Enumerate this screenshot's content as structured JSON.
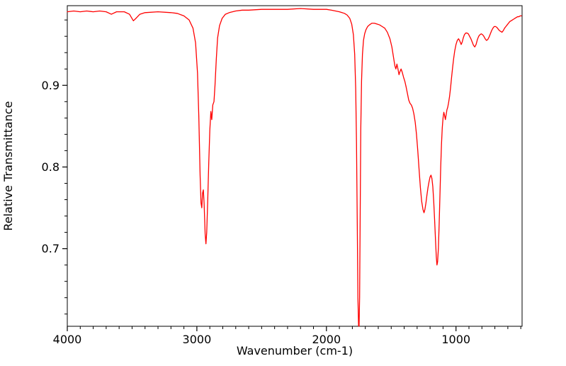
{
  "figure": {
    "background": "#ffffff",
    "axis_color": "#000000"
  },
  "chart_data": {
    "type": "line",
    "title": "",
    "xlabel": "Wavenumber (cm-1)",
    "ylabel": "Relative Transmittance",
    "x_axis_reversed": true,
    "xlim": [
      4000,
      490
    ],
    "ylim": [
      0.605,
      0.9975
    ],
    "x_major_ticks": [
      4000,
      3000,
      2000,
      1000
    ],
    "x_minor_tick_step": 100,
    "y_major_ticks": [
      0.7,
      0.8,
      0.9
    ],
    "y_minor_tick_step": 0.02,
    "grid": false,
    "legend": false,
    "line_color": "#ff0000",
    "line_width": 1.3,
    "series": [
      {
        "points": [
          [
            4000,
            0.99
          ],
          [
            3950,
            0.991
          ],
          [
            3900,
            0.99
          ],
          [
            3850,
            0.991
          ],
          [
            3800,
            0.99
          ],
          [
            3750,
            0.991
          ],
          [
            3700,
            0.99
          ],
          [
            3660,
            0.987
          ],
          [
            3620,
            0.99
          ],
          [
            3560,
            0.99
          ],
          [
            3520,
            0.987
          ],
          [
            3490,
            0.979
          ],
          [
            3470,
            0.982
          ],
          [
            3440,
            0.987
          ],
          [
            3400,
            0.989
          ],
          [
            3300,
            0.99
          ],
          [
            3200,
            0.989
          ],
          [
            3150,
            0.988
          ],
          [
            3100,
            0.985
          ],
          [
            3060,
            0.98
          ],
          [
            3030,
            0.97
          ],
          [
            3010,
            0.952
          ],
          [
            2995,
            0.915
          ],
          [
            2985,
            0.862
          ],
          [
            2975,
            0.79
          ],
          [
            2968,
            0.756
          ],
          [
            2962,
            0.75
          ],
          [
            2956,
            0.768
          ],
          [
            2950,
            0.772
          ],
          [
            2944,
            0.755
          ],
          [
            2936,
            0.718
          ],
          [
            2930,
            0.706
          ],
          [
            2924,
            0.72
          ],
          [
            2916,
            0.76
          ],
          [
            2908,
            0.806
          ],
          [
            2900,
            0.845
          ],
          [
            2892,
            0.868
          ],
          [
            2885,
            0.858
          ],
          [
            2877,
            0.876
          ],
          [
            2868,
            0.88
          ],
          [
            2860,
            0.9
          ],
          [
            2850,
            0.932
          ],
          [
            2840,
            0.958
          ],
          [
            2825,
            0.973
          ],
          [
            2805,
            0.982
          ],
          [
            2780,
            0.987
          ],
          [
            2750,
            0.989
          ],
          [
            2700,
            0.991
          ],
          [
            2650,
            0.992
          ],
          [
            2600,
            0.992
          ],
          [
            2500,
            0.993
          ],
          [
            2400,
            0.993
          ],
          [
            2300,
            0.993
          ],
          [
            2200,
            0.994
          ],
          [
            2100,
            0.993
          ],
          [
            2000,
            0.993
          ],
          [
            1960,
            0.992
          ],
          [
            1930,
            0.991
          ],
          [
            1900,
            0.99
          ],
          [
            1880,
            0.989
          ],
          [
            1860,
            0.988
          ],
          [
            1840,
            0.986
          ],
          [
            1820,
            0.982
          ],
          [
            1805,
            0.975
          ],
          [
            1792,
            0.962
          ],
          [
            1782,
            0.938
          ],
          [
            1774,
            0.895
          ],
          [
            1768,
            0.83
          ],
          [
            1762,
            0.73
          ],
          [
            1757,
            0.64
          ],
          [
            1752,
            0.606
          ],
          [
            1748,
            0.605
          ],
          [
            1744,
            0.64
          ],
          [
            1740,
            0.73
          ],
          [
            1735,
            0.845
          ],
          [
            1729,
            0.905
          ],
          [
            1722,
            0.938
          ],
          [
            1714,
            0.955
          ],
          [
            1705,
            0.963
          ],
          [
            1695,
            0.968
          ],
          [
            1682,
            0.972
          ],
          [
            1668,
            0.974
          ],
          [
            1650,
            0.976
          ],
          [
            1630,
            0.976
          ],
          [
            1610,
            0.975
          ],
          [
            1590,
            0.974
          ],
          [
            1570,
            0.972
          ],
          [
            1550,
            0.97
          ],
          [
            1530,
            0.965
          ],
          [
            1510,
            0.957
          ],
          [
            1495,
            0.947
          ],
          [
            1482,
            0.934
          ],
          [
            1472,
            0.924
          ],
          [
            1464,
            0.92
          ],
          [
            1456,
            0.926
          ],
          [
            1448,
            0.92
          ],
          [
            1440,
            0.913
          ],
          [
            1432,
            0.917
          ],
          [
            1424,
            0.92
          ],
          [
            1415,
            0.916
          ],
          [
            1405,
            0.91
          ],
          [
            1395,
            0.905
          ],
          [
            1385,
            0.898
          ],
          [
            1375,
            0.89
          ],
          [
            1365,
            0.882
          ],
          [
            1355,
            0.878
          ],
          [
            1345,
            0.876
          ],
          [
            1335,
            0.872
          ],
          [
            1325,
            0.865
          ],
          [
            1315,
            0.855
          ],
          [
            1305,
            0.84
          ],
          [
            1295,
            0.82
          ],
          [
            1285,
            0.797
          ],
          [
            1275,
            0.775
          ],
          [
            1265,
            0.758
          ],
          [
            1255,
            0.748
          ],
          [
            1247,
            0.744
          ],
          [
            1240,
            0.748
          ],
          [
            1232,
            0.756
          ],
          [
            1224,
            0.766
          ],
          [
            1216,
            0.775
          ],
          [
            1208,
            0.782
          ],
          [
            1200,
            0.788
          ],
          [
            1193,
            0.79
          ],
          [
            1186,
            0.786
          ],
          [
            1179,
            0.776
          ],
          [
            1172,
            0.758
          ],
          [
            1165,
            0.735
          ],
          [
            1158,
            0.71
          ],
          [
            1152,
            0.69
          ],
          [
            1147,
            0.68
          ],
          [
            1142,
            0.684
          ],
          [
            1136,
            0.7
          ],
          [
            1130,
            0.73
          ],
          [
            1124,
            0.765
          ],
          [
            1118,
            0.8
          ],
          [
            1112,
            0.828
          ],
          [
            1106,
            0.848
          ],
          [
            1100,
            0.86
          ],
          [
            1094,
            0.867
          ],
          [
            1088,
            0.863
          ],
          [
            1082,
            0.858
          ],
          [
            1076,
            0.864
          ],
          [
            1070,
            0.87
          ],
          [
            1064,
            0.873
          ],
          [
            1058,
            0.878
          ],
          [
            1050,
            0.886
          ],
          [
            1042,
            0.897
          ],
          [
            1034,
            0.91
          ],
          [
            1026,
            0.922
          ],
          [
            1018,
            0.933
          ],
          [
            1010,
            0.942
          ],
          [
            1000,
            0.95
          ],
          [
            990,
            0.955
          ],
          [
            980,
            0.957
          ],
          [
            970,
            0.954
          ],
          [
            960,
            0.95
          ],
          [
            952,
            0.953
          ],
          [
            944,
            0.958
          ],
          [
            935,
            0.962
          ],
          [
            925,
            0.964
          ],
          [
            915,
            0.964
          ],
          [
            905,
            0.963
          ],
          [
            895,
            0.96
          ],
          [
            885,
            0.957
          ],
          [
            875,
            0.953
          ],
          [
            865,
            0.949
          ],
          [
            855,
            0.947
          ],
          [
            845,
            0.95
          ],
          [
            835,
            0.956
          ],
          [
            825,
            0.96
          ],
          [
            815,
            0.962
          ],
          [
            805,
            0.963
          ],
          [
            795,
            0.962
          ],
          [
            785,
            0.96
          ],
          [
            775,
            0.957
          ],
          [
            765,
            0.955
          ],
          [
            755,
            0.956
          ],
          [
            745,
            0.959
          ],
          [
            735,
            0.963
          ],
          [
            725,
            0.967
          ],
          [
            715,
            0.97
          ],
          [
            705,
            0.972
          ],
          [
            695,
            0.972
          ],
          [
            685,
            0.971
          ],
          [
            675,
            0.969
          ],
          [
            665,
            0.967
          ],
          [
            655,
            0.966
          ],
          [
            645,
            0.965
          ],
          [
            635,
            0.967
          ],
          [
            625,
            0.97
          ],
          [
            615,
            0.972
          ],
          [
            605,
            0.974
          ],
          [
            595,
            0.976
          ],
          [
            585,
            0.978
          ],
          [
            575,
            0.979
          ],
          [
            565,
            0.98
          ],
          [
            555,
            0.981
          ],
          [
            545,
            0.982
          ],
          [
            535,
            0.983
          ],
          [
            525,
            0.984
          ],
          [
            515,
            0.984
          ],
          [
            505,
            0.985
          ],
          [
            495,
            0.985
          ]
        ]
      }
    ]
  }
}
